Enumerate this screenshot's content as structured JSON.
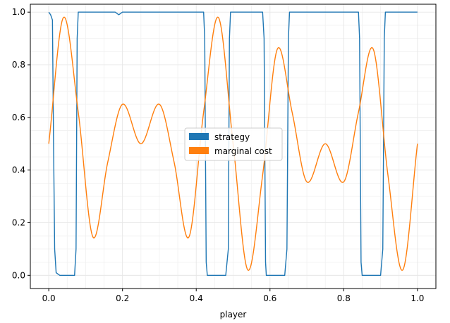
{
  "chart_data": {
    "type": "line",
    "title": "",
    "xlabel": "player",
    "ylabel": "",
    "xlim": [
      -0.05,
      1.05
    ],
    "ylim": [
      -0.05,
      1.03
    ],
    "xticks": [
      0.0,
      0.2,
      0.4,
      0.6,
      0.8,
      1.0
    ],
    "xtick_labels": [
      "0.0",
      "0.2",
      "0.4",
      "0.6",
      "0.8",
      "1.0"
    ],
    "yticks": [
      0.0,
      0.2,
      0.4,
      0.6,
      0.8,
      1.0
    ],
    "ytick_labels": [
      "0.0",
      "0.2",
      "0.4",
      "0.6",
      "0.8",
      "1.0"
    ],
    "grid": true,
    "legend_position": "center",
    "series": [
      {
        "name": "strategy",
        "color": "#1f77b4",
        "x": [
          0.0,
          0.005,
          0.01,
          0.013,
          0.016,
          0.02,
          0.03,
          0.05,
          0.07,
          0.074,
          0.077,
          0.08,
          0.1,
          0.15,
          0.18,
          0.19,
          0.2,
          0.25,
          0.3,
          0.35,
          0.4,
          0.42,
          0.423,
          0.427,
          0.43,
          0.45,
          0.48,
          0.487,
          0.49,
          0.493,
          0.5,
          0.55,
          0.58,
          0.584,
          0.588,
          0.59,
          0.6,
          0.64,
          0.646,
          0.65,
          0.653,
          0.66,
          0.7,
          0.75,
          0.8,
          0.84,
          0.843,
          0.847,
          0.85,
          0.87,
          0.9,
          0.906,
          0.91,
          0.913,
          0.92,
          0.95,
          1.0
        ],
        "y": [
          1.0,
          0.99,
          0.97,
          0.5,
          0.1,
          0.01,
          0.0,
          0.0,
          0.0,
          0.1,
          0.9,
          1.0,
          1.0,
          1.0,
          1.0,
          0.99,
          1.0,
          1.0,
          1.0,
          1.0,
          1.0,
          1.0,
          0.9,
          0.05,
          0.0,
          0.0,
          0.0,
          0.1,
          0.9,
          1.0,
          1.0,
          1.0,
          1.0,
          0.9,
          0.05,
          0.0,
          0.0,
          0.0,
          0.1,
          0.9,
          1.0,
          1.0,
          1.0,
          1.0,
          1.0,
          1.0,
          0.9,
          0.05,
          0.0,
          0.0,
          0.0,
          0.1,
          0.9,
          1.0,
          1.0,
          1.0,
          1.0
        ]
      },
      {
        "name": "marginal cost",
        "color": "#ff7f0e",
        "x": [
          0.0,
          0.04,
          0.08,
          0.12,
          0.16,
          0.2,
          0.25,
          0.3,
          0.34,
          0.38,
          0.42,
          0.46,
          0.5,
          0.54,
          0.58,
          0.62,
          0.66,
          0.7,
          0.75,
          0.8,
          0.84,
          0.88,
          0.92,
          0.96,
          1.0
        ],
        "y": [
          0.5,
          0.98,
          0.62,
          0.145,
          0.43,
          0.65,
          0.5,
          0.65,
          0.43,
          0.145,
          0.62,
          0.98,
          0.5,
          0.02,
          0.38,
          0.86,
          0.62,
          0.355,
          0.5,
          0.355,
          0.62,
          0.86,
          0.38,
          0.02,
          0.5
        ]
      }
    ]
  }
}
